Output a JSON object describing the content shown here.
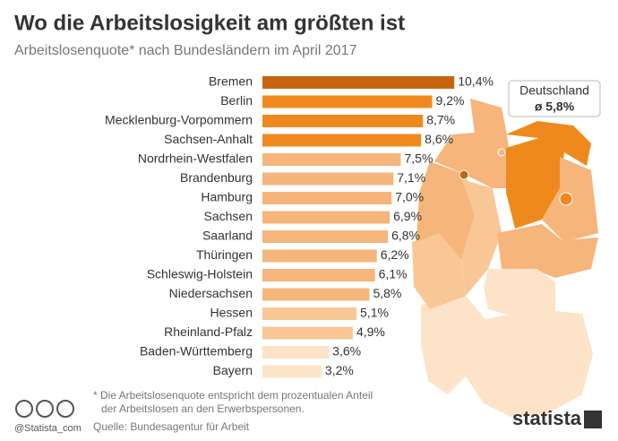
{
  "chart_data": {
    "type": "bar",
    "orientation": "horizontal",
    "title": "Wo die Arbeitslosigkeit am größten ist",
    "subtitle": "Arbeitslosenquote* nach Bundesländern im April 2017",
    "categories": [
      "Bremen",
      "Berlin",
      "Mecklenburg-Vorpommern",
      "Sachsen-Anhalt",
      "Nordrhein-Westfalen",
      "Brandenburg",
      "Hamburg",
      "Sachsen",
      "Saarland",
      "Thüringen",
      "Schleswig-Holstein",
      "Niedersachsen",
      "Hessen",
      "Rheinland-Pfalz",
      "Baden-Württemberg",
      "Bayern"
    ],
    "values": [
      10.4,
      9.2,
      8.7,
      8.6,
      7.5,
      7.1,
      7.0,
      6.9,
      6.8,
      6.2,
      6.1,
      5.8,
      5.1,
      4.9,
      3.6,
      3.2
    ],
    "value_labels": [
      "10,4%",
      "9,2%",
      "8,7%",
      "8,6%",
      "7,5%",
      "7,1%",
      "7,0%",
      "6,9%",
      "6,8%",
      "6,2%",
      "6,1%",
      "5,8%",
      "5,1%",
      "4,9%",
      "3,6%",
      "3,2%"
    ],
    "colors": [
      "#c7650e",
      "#f0891d",
      "#f0891d",
      "#f0891d",
      "#f6b57a",
      "#f6b57a",
      "#f6b57a",
      "#f6b57a",
      "#f6b57a",
      "#f6b57a",
      "#f6b57a",
      "#f6b57a",
      "#f9c796",
      "#f9c796",
      "#fde3c8",
      "#fde3c8"
    ],
    "callout": {
      "title": "Deutschland",
      "text": "ø 5,8%"
    },
    "footnote": [
      "* Die Arbeitslosenquote entspricht dem prozentualen Anteil",
      "der Arbeitslosen an den Erwerbspersonen."
    ],
    "source": "Quelle: Bundesagentur für Arbeit",
    "handle": "@Statista_com",
    "brand": "statista"
  }
}
